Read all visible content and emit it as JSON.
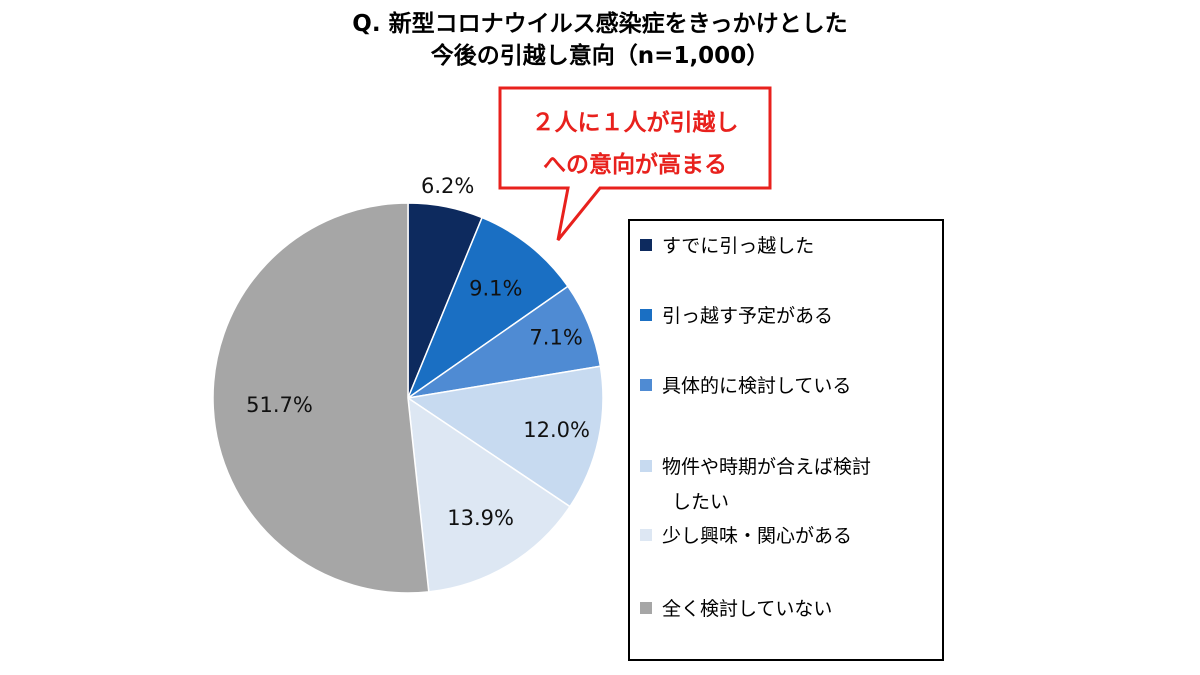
{
  "title": {
    "line1": "Q.  新型コロナウイルス感染症をきっかけとした",
    "line2": "今後の引越し意向（n=1,000）"
  },
  "callout": {
    "line1": "２人に１人が引越し",
    "line2": "への意向が高まる",
    "color": "#e8211d"
  },
  "chart_data": {
    "type": "pie",
    "total_n": 1000,
    "categories": [
      "すでに引っ越した",
      "引っ越す予定がある",
      "具体的に検討している",
      "物件や時期が合えば検討したい",
      "少し興味・関心がある",
      "全く検討していない"
    ],
    "values": [
      6.2,
      9.1,
      7.1,
      12.0,
      13.9,
      51.7
    ],
    "labels": [
      "6.2%",
      "9.1%",
      "7.1%",
      "12.0%",
      "13.9%",
      "51.7%"
    ],
    "colors": [
      "#0d2a5e",
      "#1a6fc3",
      "#4f8bd3",
      "#c7daf0",
      "#dde7f3",
      "#a6a6a6"
    ],
    "start_angle_deg": 0,
    "direction": "clockwise",
    "legend_position": "right"
  },
  "legend": {
    "items": [
      {
        "label": "すでに引っ越した"
      },
      {
        "label": "引っ越す予定がある"
      },
      {
        "label": "具体的に検討している"
      },
      {
        "label_line1": "物件や時期が合えば検討",
        "label_line2": "したい"
      },
      {
        "label": "少し興味・関心がある"
      },
      {
        "label": "全く検討していない"
      }
    ]
  }
}
